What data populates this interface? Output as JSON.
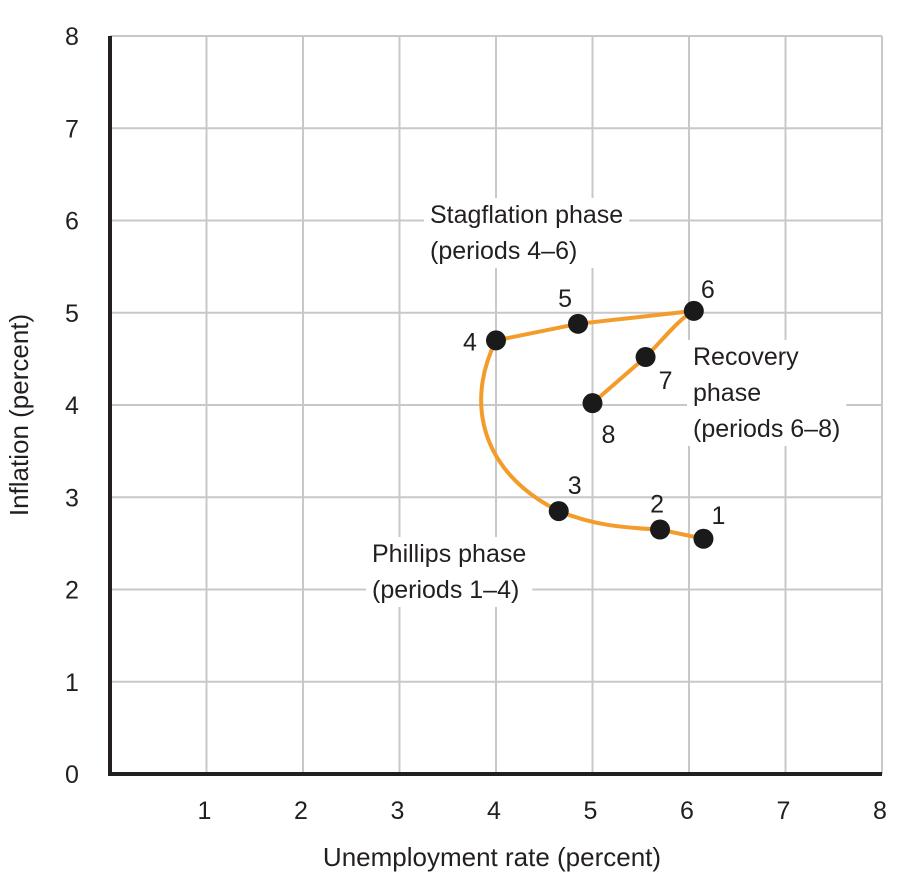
{
  "chart_data": {
    "type": "line",
    "xlabel": "Unemployment rate (percent)",
    "ylabel": "Inflation (percent)",
    "xlim": [
      0,
      8
    ],
    "ylim": [
      0,
      8
    ],
    "x_ticks": [
      "1",
      "2",
      "3",
      "4",
      "5",
      "6",
      "7",
      "8"
    ],
    "y_ticks": [
      "0",
      "1",
      "2",
      "3",
      "4",
      "5",
      "6",
      "7",
      "8"
    ],
    "grid": true,
    "line_color": "#f39c2b",
    "point_color": "#1a1a1a",
    "points": [
      {
        "label": "1",
        "x": 6.15,
        "y": 2.55
      },
      {
        "label": "2",
        "x": 5.7,
        "y": 2.65
      },
      {
        "label": "3",
        "x": 4.65,
        "y": 2.85
      },
      {
        "label": "4",
        "x": 4.0,
        "y": 4.7
      },
      {
        "label": "5",
        "x": 4.85,
        "y": 4.88
      },
      {
        "label": "6",
        "x": 6.05,
        "y": 5.02
      },
      {
        "label": "7",
        "x": 5.55,
        "y": 4.52
      },
      {
        "label": "8",
        "x": 5.0,
        "y": 4.02
      }
    ],
    "annotations": [
      {
        "name": "stagflation",
        "lines": [
          "Stagflation phase",
          "(periods 4–6)"
        ]
      },
      {
        "name": "recovery",
        "lines": [
          "Recovery",
          "phase",
          "(periods 6–8)"
        ]
      },
      {
        "name": "phillips",
        "lines": [
          "Phillips phase",
          "(periods 1–4)"
        ]
      }
    ]
  }
}
